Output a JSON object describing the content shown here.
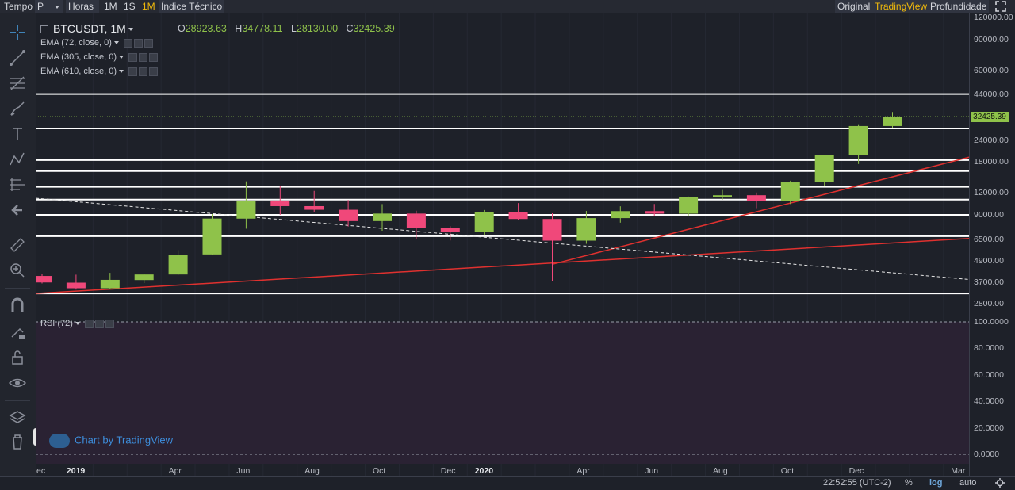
{
  "toolbar": {
    "tempo": "Tempo",
    "period": "P",
    "horas": "Horas",
    "btn_1m": "1M",
    "btn_1s": "1S",
    "btn_1m_active": "1M",
    "indicator": "Índice Técnico",
    "view_original": "Original",
    "view_tradingview": "TradingView",
    "view_depth": "Profundidade"
  },
  "chart": {
    "symbol": "BTCUSDT, 1M",
    "ohlc": {
      "o_label": "O",
      "o": "28923.63",
      "h_label": "H",
      "h": "34778.11",
      "l_label": "L",
      "l": "28130.00",
      "c_label": "C",
      "c": "32425.39"
    },
    "indicators": [
      "EMA (72, close, 0)",
      "EMA (305, close, 0)",
      "EMA (610, close, 0)"
    ],
    "rsi_label": "RSI (72)",
    "watermark": "Chart by TradingView",
    "last_price": "32425.39",
    "price_axis": [
      "120000.00",
      "90000.00",
      "60000.00",
      "44000.00",
      "24000.00",
      "18000.00",
      "12000.00",
      "9000.00",
      "6500.00",
      "4900.00",
      "3700.00",
      "2800.00"
    ],
    "rsi_axis": [
      "100.0000",
      "80.0000",
      "60.0000",
      "40.0000",
      "20.0000",
      "0.0000"
    ],
    "time_axis": [
      "ec",
      "2019",
      "Apr",
      "Jun",
      "Aug",
      "Oct",
      "Dec",
      "2020",
      "Apr",
      "Jun",
      "Aug",
      "Oct",
      "Dec",
      "Mar"
    ],
    "colors": {
      "up": "#8fc24a",
      "down": "#f0487a",
      "trend": "#e0312f",
      "level": "#ffffff",
      "rsi_bg": "#2a2233"
    }
  },
  "bottom": {
    "time": "22:52:55 (UTC-2)",
    "percent": "%",
    "log": "log",
    "auto": "auto"
  },
  "candles": [
    {
      "t": "2018-12",
      "o": 4030,
      "h": 4150,
      "l": 3650,
      "c": 3700
    },
    {
      "t": "2019-01",
      "o": 3690,
      "h": 4100,
      "l": 3370,
      "c": 3430
    },
    {
      "t": "2019-02",
      "o": 3430,
      "h": 4200,
      "l": 3400,
      "c": 3830
    },
    {
      "t": "2019-03",
      "o": 3820,
      "h": 4120,
      "l": 3670,
      "c": 4110
    },
    {
      "t": "2019-04",
      "o": 4110,
      "h": 5660,
      "l": 4080,
      "c": 5340
    },
    {
      "t": "2019-05",
      "o": 5350,
      "h": 9090,
      "l": 5350,
      "c": 8570
    },
    {
      "t": "2019-06",
      "o": 8560,
      "h": 13980,
      "l": 7500,
      "c": 10860
    },
    {
      "t": "2019-07",
      "o": 10860,
      "h": 13140,
      "l": 9000,
      "c": 10090
    },
    {
      "t": "2019-08",
      "o": 10090,
      "h": 12330,
      "l": 9320,
      "c": 9620
    },
    {
      "t": "2019-09",
      "o": 9620,
      "h": 10950,
      "l": 7720,
      "c": 8290
    },
    {
      "t": "2019-10",
      "o": 8290,
      "h": 10370,
      "l": 7300,
      "c": 9150
    },
    {
      "t": "2019-11",
      "o": 9150,
      "h": 9500,
      "l": 6520,
      "c": 7540
    },
    {
      "t": "2019-12",
      "o": 7540,
      "h": 7750,
      "l": 6430,
      "c": 7190
    },
    {
      "t": "2020-01",
      "o": 7190,
      "h": 9590,
      "l": 6850,
      "c": 9350
    },
    {
      "t": "2020-02",
      "o": 9350,
      "h": 10500,
      "l": 8450,
      "c": 8520
    },
    {
      "t": "2020-03",
      "o": 8520,
      "h": 9180,
      "l": 3780,
      "c": 6410
    },
    {
      "t": "2020-04",
      "o": 6410,
      "h": 9470,
      "l": 6150,
      "c": 8620
    },
    {
      "t": "2020-05",
      "o": 8620,
      "h": 10070,
      "l": 8120,
      "c": 9450
    },
    {
      "t": "2020-06",
      "o": 9450,
      "h": 10380,
      "l": 8830,
      "c": 9140
    },
    {
      "t": "2020-07",
      "o": 9140,
      "h": 11450,
      "l": 8900,
      "c": 11330
    },
    {
      "t": "2020-08",
      "o": 11330,
      "h": 12470,
      "l": 10980,
      "c": 11650
    },
    {
      "t": "2020-09",
      "o": 11650,
      "h": 12070,
      "l": 9820,
      "c": 10770
    },
    {
      "t": "2020-10",
      "o": 10770,
      "h": 14100,
      "l": 10370,
      "c": 13790
    },
    {
      "t": "2020-11",
      "o": 13790,
      "h": 19860,
      "l": 13200,
      "c": 19700
    },
    {
      "t": "2020-12",
      "o": 19700,
      "h": 29300,
      "l": 17570,
      "c": 28920
    },
    {
      "t": "2021-01",
      "o": 28920,
      "h": 34780,
      "l": 28130,
      "c": 32425
    }
  ],
  "levels": [
    44000,
    28000,
    18500,
    16000,
    13000,
    11000,
    9000,
    6800,
    3200
  ]
}
